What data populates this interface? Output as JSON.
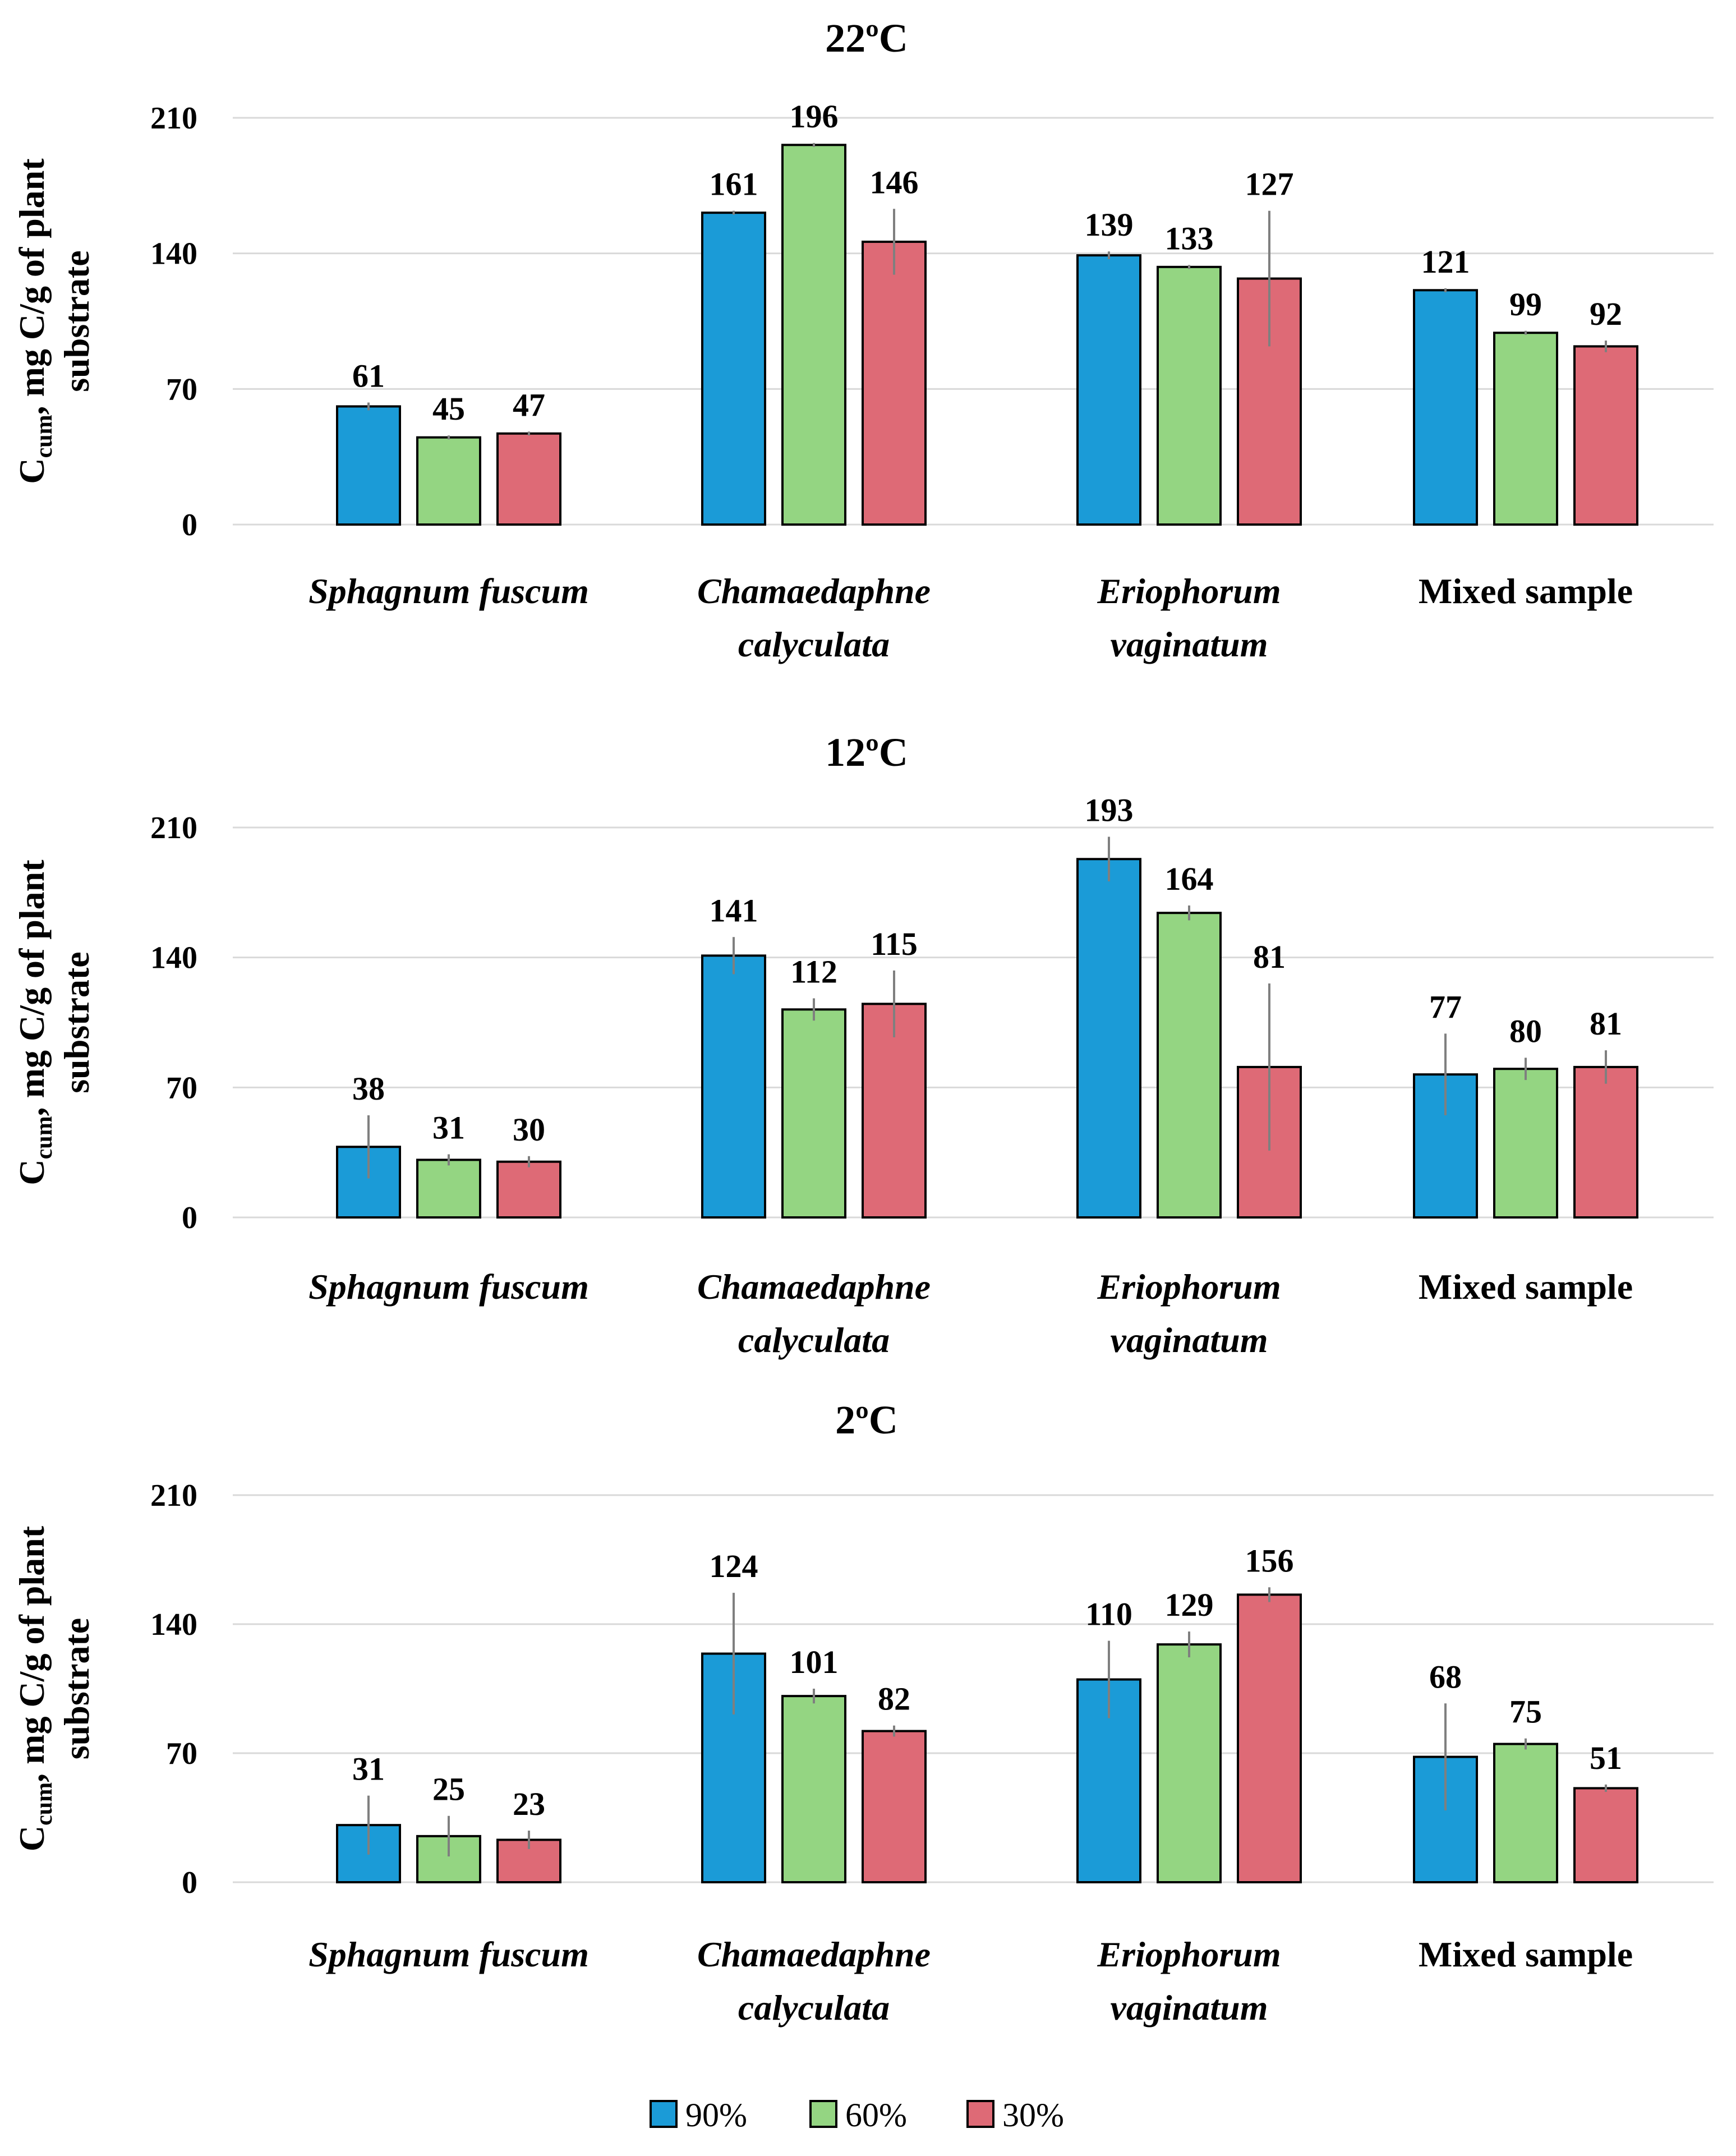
{
  "colors": {
    "90%": "#1b9bd7",
    "60%": "#94d582",
    "30%": "#de6a76"
  },
  "legend": [
    "90%",
    "60%",
    "30%"
  ],
  "chart_data": [
    {
      "type": "bar",
      "title": "22ºC",
      "ylabel": {
        "main": "C",
        "sub": "cum",
        "rest": ", mg C/g of plant",
        "line2": "substrate"
      },
      "ylim": [
        0,
        210
      ],
      "yticks": [
        0,
        70,
        140,
        210
      ],
      "categories": [
        {
          "lines": [
            "Sphagnum fuscum"
          ],
          "italic": true
        },
        {
          "lines": [
            "Chamaedaphne",
            "calyculata"
          ],
          "italic": true
        },
        {
          "lines": [
            "Eriophorum",
            "vaginatum"
          ],
          "italic": true
        },
        {
          "lines": [
            "Mixed sample"
          ],
          "italic": false
        }
      ],
      "series": [
        {
          "name": "90%",
          "values": [
            61,
            161,
            139,
            121
          ],
          "errors": [
            2,
            1,
            2,
            1
          ]
        },
        {
          "name": "60%",
          "values": [
            45,
            196,
            133,
            99
          ],
          "errors": [
            1,
            1,
            1,
            1
          ]
        },
        {
          "name": "30%",
          "values": [
            47,
            146,
            127,
            92
          ],
          "errors": [
            1,
            17,
            35,
            3
          ]
        }
      ]
    },
    {
      "type": "bar",
      "title": "12ºC",
      "ylabel": {
        "main": "C",
        "sub": "cum",
        "rest": ", mg C/g of plant",
        "line2": "substrate"
      },
      "ylim": [
        0,
        210
      ],
      "yticks": [
        0,
        70,
        140,
        210
      ],
      "categories": [
        {
          "lines": [
            "Sphagnum fuscum"
          ],
          "italic": true
        },
        {
          "lines": [
            "Chamaedaphne",
            "calyculata"
          ],
          "italic": true
        },
        {
          "lines": [
            "Eriophorum",
            "vaginatum"
          ],
          "italic": true
        },
        {
          "lines": [
            "Mixed sample"
          ],
          "italic": false
        }
      ],
      "series": [
        {
          "name": "90%",
          "values": [
            38,
            141,
            193,
            77
          ],
          "errors": [
            17,
            10,
            12,
            22
          ]
        },
        {
          "name": "60%",
          "values": [
            31,
            112,
            164,
            80
          ],
          "errors": [
            3,
            6,
            4,
            6
          ]
        },
        {
          "name": "30%",
          "values": [
            30,
            115,
            81,
            81
          ],
          "errors": [
            3,
            18,
            45,
            9
          ]
        }
      ]
    },
    {
      "type": "bar",
      "title": "2ºC",
      "ylabel": {
        "main": "C",
        "sub": "cum",
        "rest": ", mg C/g of plant",
        "line2": "substrate"
      },
      "ylim": [
        0,
        210
      ],
      "yticks": [
        0,
        70,
        140,
        210
      ],
      "categories": [
        {
          "lines": [
            "Sphagnum fuscum"
          ],
          "italic": true
        },
        {
          "lines": [
            "Chamaedaphne",
            "calyculata"
          ],
          "italic": true
        },
        {
          "lines": [
            "Eriophorum",
            "vaginatum"
          ],
          "italic": true
        },
        {
          "lines": [
            "Mixed sample"
          ],
          "italic": false
        }
      ],
      "series": [
        {
          "name": "90%",
          "values": [
            31,
            124,
            110,
            68
          ],
          "errors": [
            16,
            33,
            21,
            29
          ]
        },
        {
          "name": "60%",
          "values": [
            25,
            101,
            129,
            75
          ],
          "errors": [
            11,
            4,
            7,
            3
          ]
        },
        {
          "name": "30%",
          "values": [
            23,
            82,
            156,
            51
          ],
          "errors": [
            5,
            3,
            4,
            2
          ]
        }
      ]
    }
  ]
}
